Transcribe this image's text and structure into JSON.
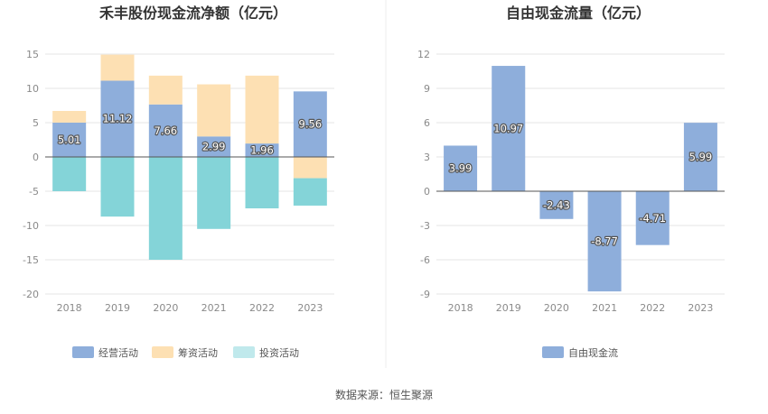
{
  "chart_data": [
    {
      "type": "bar",
      "stacked": true,
      "title": "禾丰股份现金流净额（亿元）",
      "categories": [
        "2018",
        "2019",
        "2020",
        "2021",
        "2022",
        "2023"
      ],
      "ylim": [
        -20,
        15
      ],
      "yticks": [
        15,
        10,
        5,
        0,
        -5,
        -10,
        -15,
        -20
      ],
      "grid": true,
      "legend_position": "bottom",
      "series": [
        {
          "name": "经营活动",
          "color": "#8eaedb",
          "values": [
            5.01,
            11.12,
            7.66,
            2.99,
            1.96,
            9.56
          ],
          "labels": [
            "5.01",
            "11.12",
            "7.66",
            "2.99",
            "1.96",
            "9.56"
          ]
        },
        {
          "name": "筹资活动",
          "color": "#fde0b3",
          "values": [
            1.7,
            3.8,
            4.2,
            7.6,
            9.9,
            -3.1
          ]
        },
        {
          "name": "投资活动",
          "color": "#84d4d8",
          "legend_color": "#c0e9ec",
          "values": [
            -5.0,
            -8.7,
            -15.0,
            -10.5,
            -7.5,
            -4.0
          ]
        }
      ]
    },
    {
      "type": "bar",
      "title": "自由现金流量（亿元）",
      "categories": [
        "2018",
        "2019",
        "2020",
        "2021",
        "2022",
        "2023"
      ],
      "ylim": [
        -9,
        12
      ],
      "yticks": [
        12,
        9,
        6,
        3,
        0,
        -3,
        -6,
        -9
      ],
      "grid": true,
      "legend_position": "bottom",
      "series": [
        {
          "name": "自由现金流",
          "color": "#8eaedb",
          "values": [
            3.99,
            10.97,
            -2.43,
            -8.77,
            -4.71,
            5.99
          ],
          "labels": [
            "3.99",
            "10.97",
            "-2.43",
            "-8.77",
            "-4.71",
            "5.99"
          ]
        }
      ]
    }
  ],
  "footer": {
    "source": "数据来源：恒生聚源"
  }
}
